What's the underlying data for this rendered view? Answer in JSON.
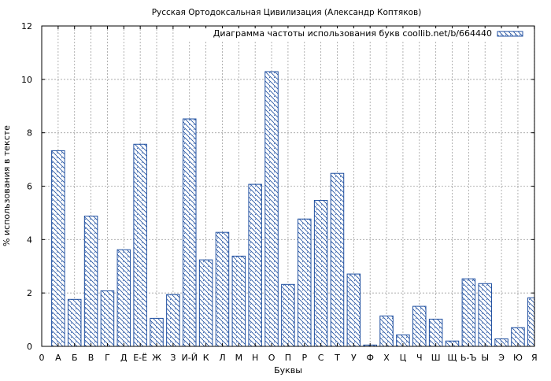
{
  "chart_data": {
    "type": "bar",
    "title": "Русская Ортодоксальная Цивилизация (Александр Коптяков)",
    "xlabel": "Буквы",
    "ylabel": "% использования в тексте",
    "legend": {
      "label": "Диаграмма частоты использования букв coollib.net/b/664440",
      "placement": "top-right"
    },
    "colors": {
      "bar_edge": "#1f4fa0",
      "hatch": "#1f4fa0",
      "grid": "#a0a0a0",
      "background": "#ffffff"
    },
    "grid": true,
    "ylim": [
      0,
      12
    ],
    "yticks": [
      "0",
      "2",
      "4",
      "6",
      "8",
      "10",
      "12"
    ],
    "categories": [
      "0",
      "А",
      "Б",
      "В",
      "Г",
      "Д",
      "Е-Ё",
      "Ж",
      "З",
      "И-Й",
      "К",
      "Л",
      "М",
      "Н",
      "О",
      "П",
      "Р",
      "С",
      "Т",
      "У",
      "Ф",
      "Х",
      "Ц",
      "Ч",
      "Ш",
      "Щ",
      "Ь-Ъ",
      "Ы",
      "Э",
      "Ю",
      "Я"
    ],
    "values": [
      0,
      7.33,
      1.76,
      4.88,
      2.08,
      3.62,
      7.57,
      1.05,
      1.94,
      8.52,
      3.24,
      4.27,
      3.38,
      6.07,
      10.29,
      2.32,
      4.77,
      5.47,
      6.48,
      2.71,
      0.05,
      1.14,
      0.43,
      1.5,
      1.02,
      0.2,
      2.53,
      2.35,
      0.28,
      0.7,
      1.82
    ]
  }
}
